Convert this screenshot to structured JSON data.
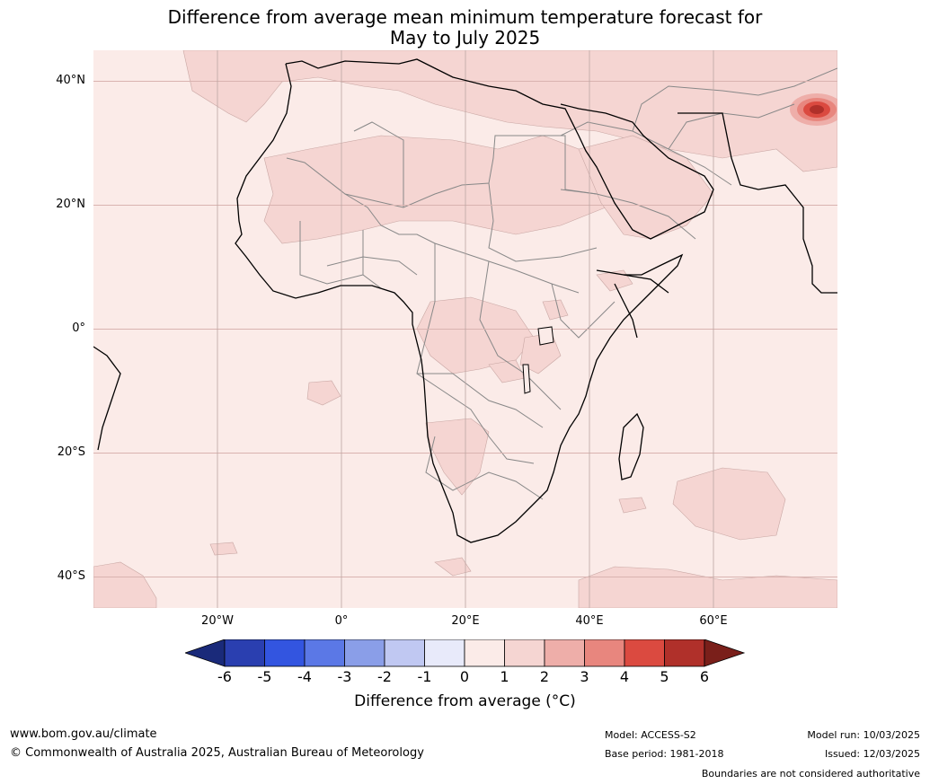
{
  "title": {
    "line1": "Difference from average mean minimum temperature forecast for",
    "line2": "May to July 2025"
  },
  "map": {
    "lat_labels": [
      "40°N",
      "20°N",
      "0°",
      "20°S",
      "40°S"
    ],
    "lon_labels": [
      "20°W",
      "0°",
      "20°E",
      "40°E",
      "60°E"
    ],
    "extent": {
      "lon": [
        -40,
        80
      ],
      "lat": [
        -45,
        45
      ]
    },
    "colors": {
      "ocean_fill": "#fbebe8",
      "anomaly_1_2": "#f5d5d2",
      "anomaly_2_3": "#eeaea9",
      "anomaly_3_4": "#e8867e",
      "anomaly_4_5": "#db4a40",
      "anomaly_5_6": "#b0302a",
      "gridline": "#d9b3b0",
      "coastline": "#000000",
      "border": "#888888"
    }
  },
  "colorbar": {
    "ticks": [
      "-6",
      "-5",
      "-4",
      "-3",
      "-2",
      "-1",
      "0",
      "1",
      "2",
      "3",
      "4",
      "5",
      "6"
    ],
    "colors": [
      "#1a2a7a",
      "#2a3fb0",
      "#3355e0",
      "#5b78e6",
      "#8a9ee8",
      "#c0c8f2",
      "#e8eafa",
      "#fbebe8",
      "#f5d5d2",
      "#eeaea9",
      "#e8867e",
      "#db4a40",
      "#b0302a",
      "#7a1f1a"
    ],
    "label": "Difference from average ($^\\circ$C)",
    "label_display": "Difference from average (°C)"
  },
  "footer": {
    "website": "www.bom.gov.au/climate",
    "copyright": "© Commonwealth of Australia 2025, Australian Bureau of Meteorology",
    "model": "Model: ACCESS-S2",
    "base_period": "Base period: 1981-2018",
    "model_run": "Model run: 10/03/2025",
    "issued": "Issued: 12/03/2025",
    "disclaimer": "Boundaries are not considered authoritative"
  }
}
